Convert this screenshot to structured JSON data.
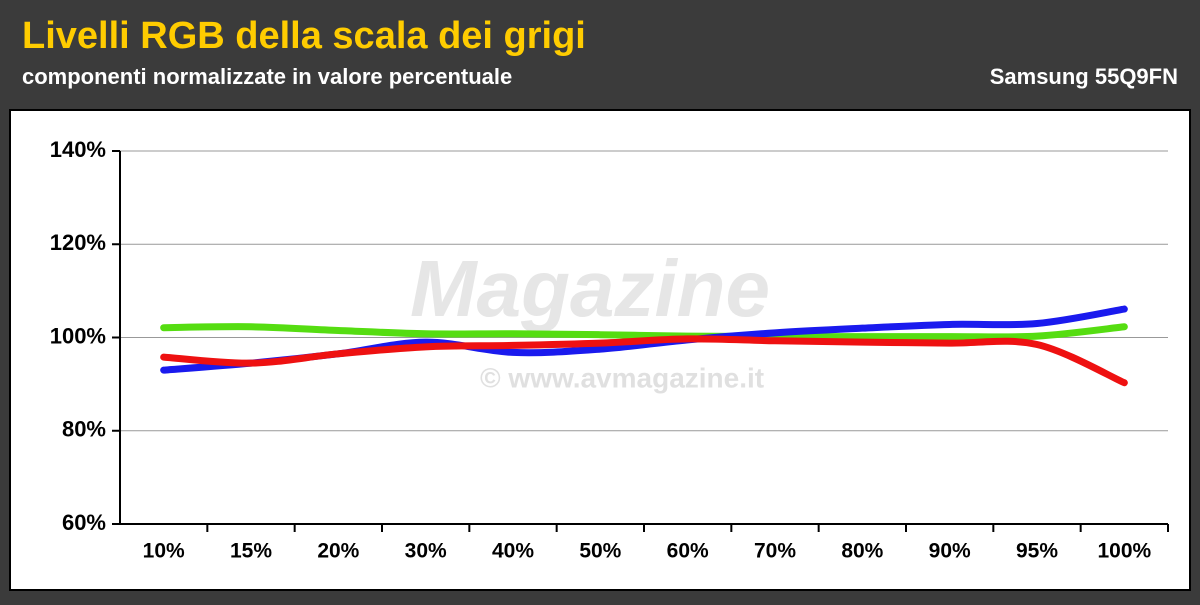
{
  "chart_data": {
    "type": "line",
    "title": "Livelli RGB della scala dei grigi",
    "subtitle": "componenti normalizzate in valore percentuale",
    "device": "Samsung 55Q9FN",
    "watermark": "© www.avmagazine.it",
    "watermark_logo": "Magazine",
    "categories": [
      "10%",
      "15%",
      "20%",
      "30%",
      "40%",
      "50%",
      "60%",
      "70%",
      "80%",
      "90%",
      "95%",
      "100%"
    ],
    "series": [
      {
        "color": "#55dd11",
        "values": [
          102.1,
          102.3,
          101.5,
          100.8,
          100.8,
          100.6,
          100.3,
          100.2,
          100.2,
          100.2,
          100.3,
          102.3
        ]
      },
      {
        "color": "#1a1aee",
        "values": [
          93.0,
          94.5,
          96.5,
          99.0,
          96.8,
          97.5,
          99.5,
          101.0,
          102.0,
          102.8,
          103.0,
          106.1
        ]
      },
      {
        "color": "#ee1111",
        "values": [
          95.8,
          94.5,
          96.5,
          98.0,
          98.3,
          98.8,
          99.7,
          99.3,
          99.0,
          98.8,
          98.5,
          90.3
        ]
      }
    ],
    "ylim": [
      60,
      140
    ],
    "yticks": [
      {
        "value": 60,
        "label": "60%"
      },
      {
        "value": 80,
        "label": "80%"
      },
      {
        "value": 100,
        "label": "100%"
      },
      {
        "value": 120,
        "label": "120%"
      },
      {
        "value": 140,
        "label": "140%"
      }
    ],
    "grid": true
  }
}
